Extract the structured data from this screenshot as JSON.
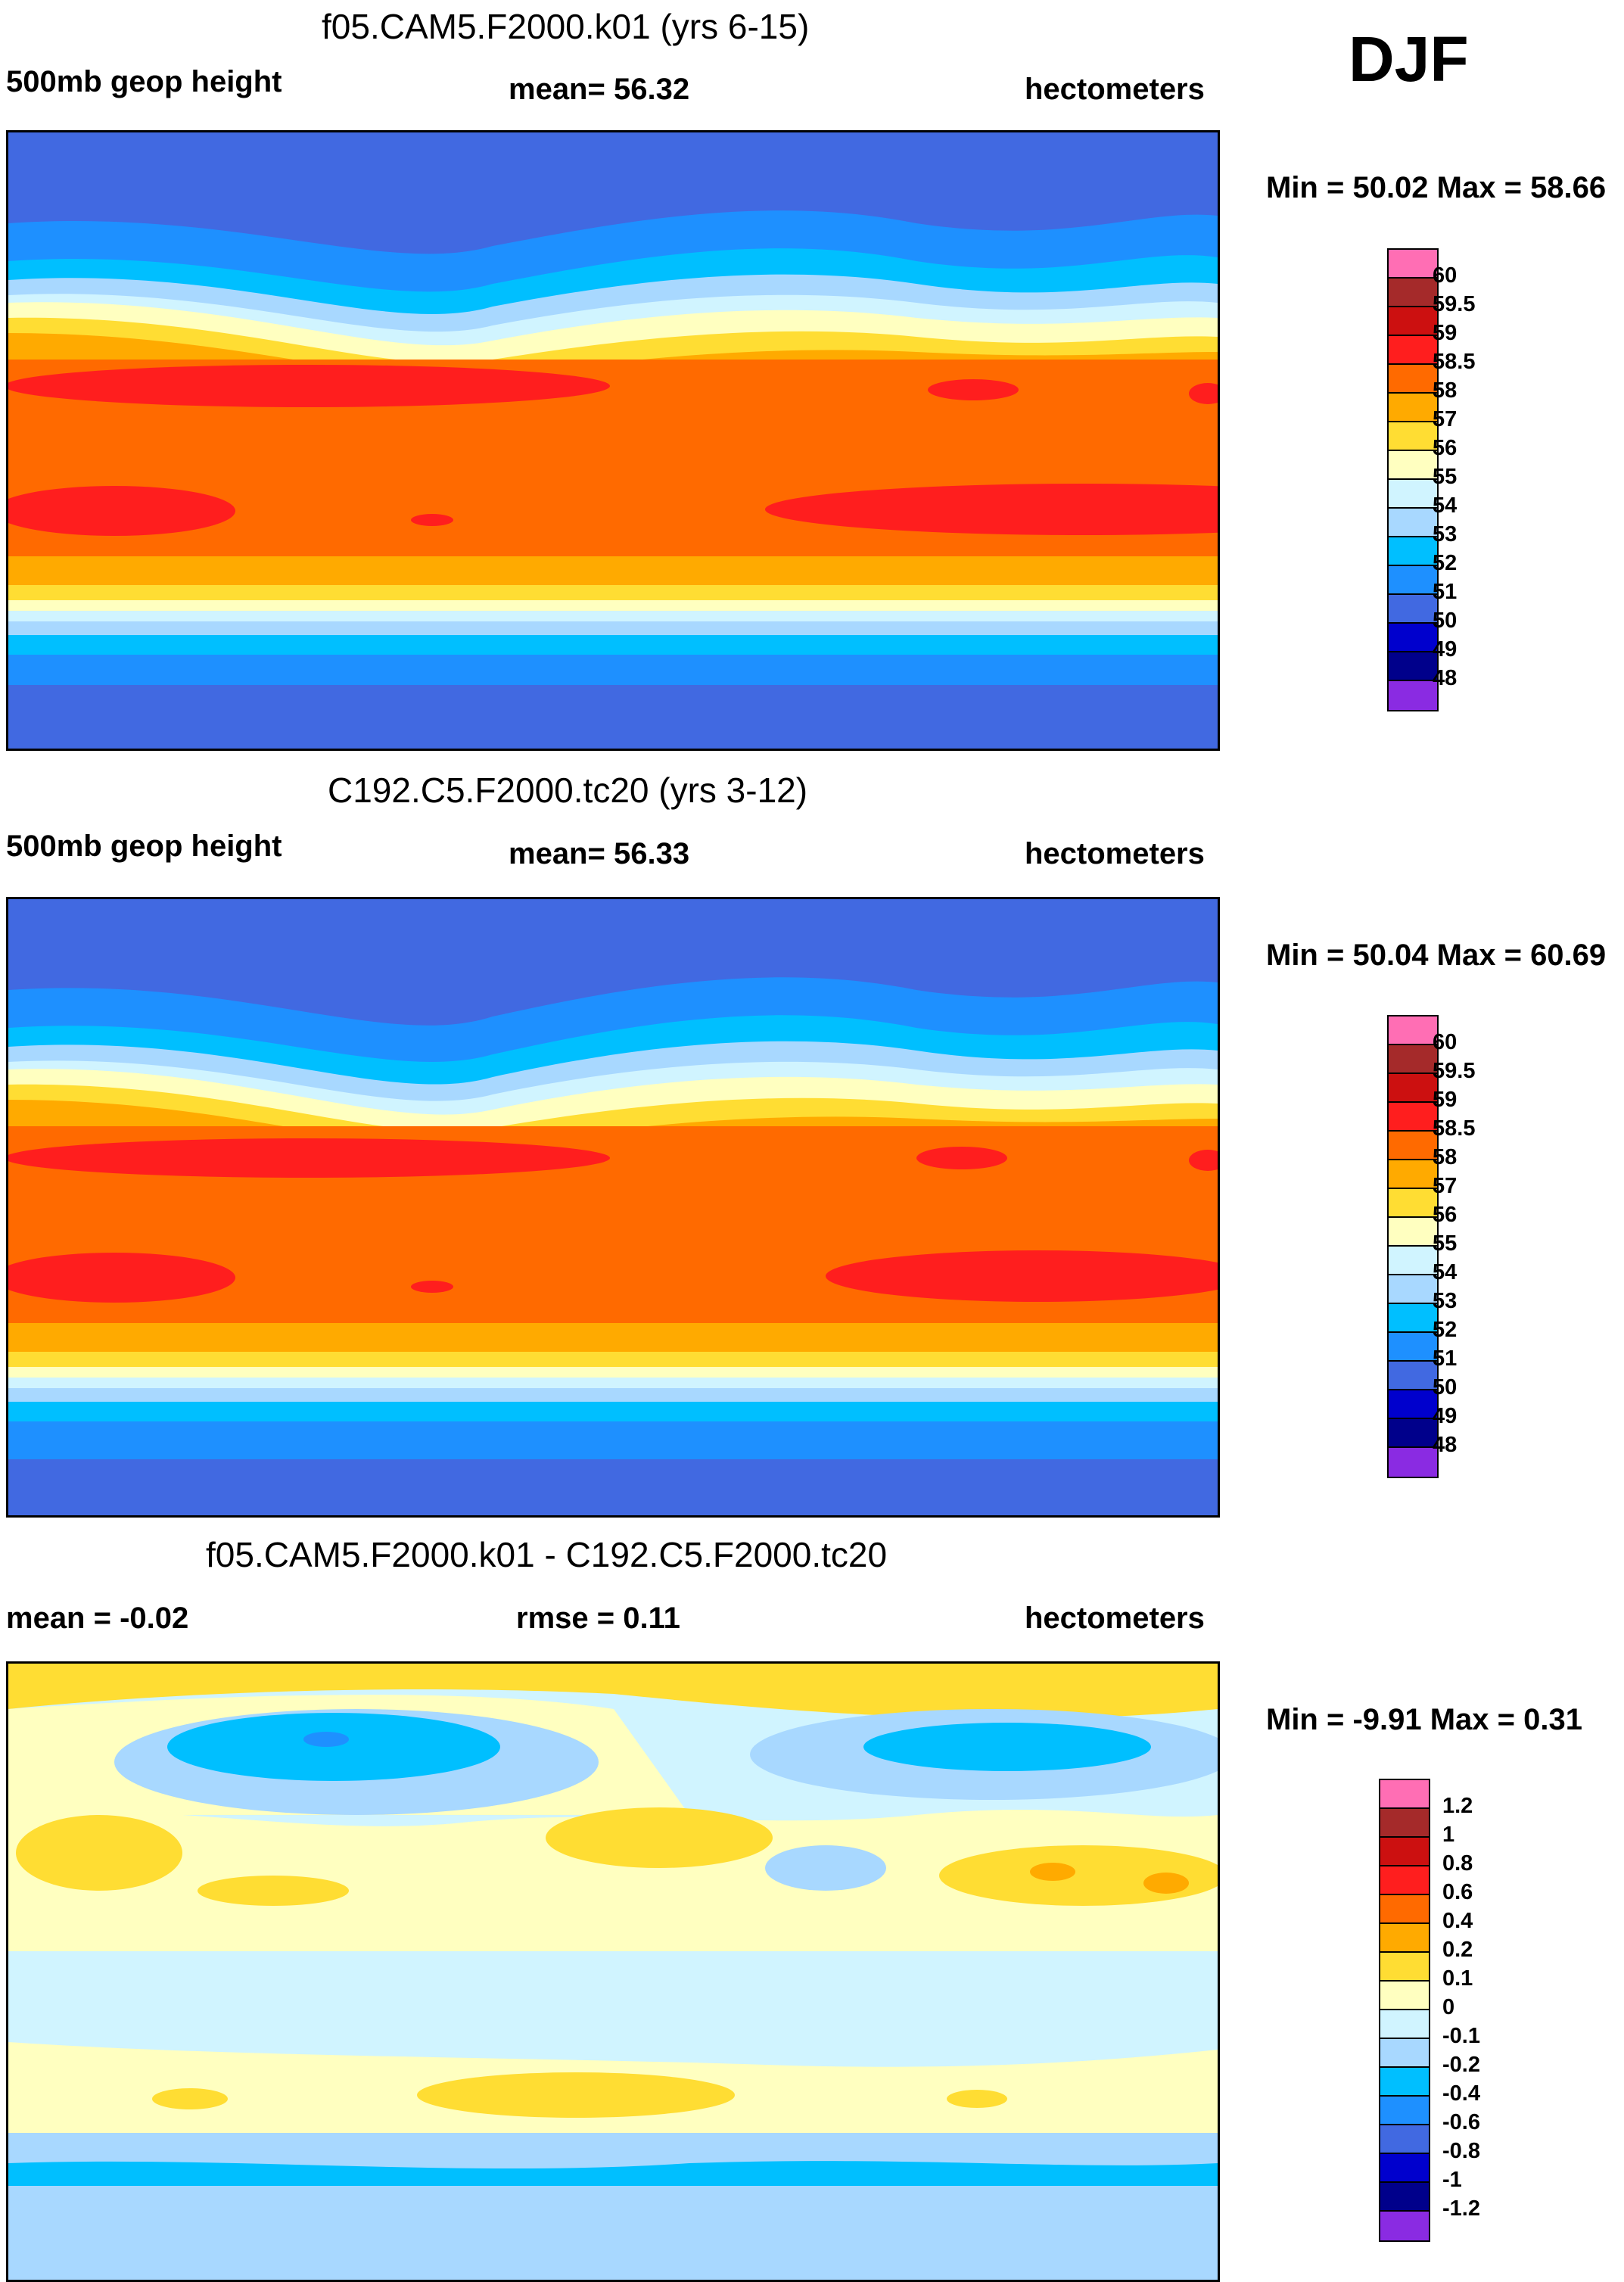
{
  "season": "DJF",
  "panels": [
    {
      "title": "f05.CAM5.F2000.k01 (yrs 6-15)",
      "left_label": "500mb geop height",
      "center_label": "mean=  56.32",
      "units": "hectometers",
      "minmax": "Min =  50.02 Max =  58.66",
      "field": "absolute",
      "colorbar_labels": [
        "60",
        "59.5",
        "59",
        "58.5",
        "58",
        "57",
        "56",
        "55",
        "54",
        "53",
        "52",
        "51",
        "50",
        "49",
        "48"
      ]
    },
    {
      "title": "C192.C5.F2000.tc20 (yrs 3-12)",
      "left_label": "500mb geop height",
      "center_label": "mean=  56.33",
      "units": "hectometers",
      "minmax": "Min =  50.04 Max =  60.69",
      "field": "absolute",
      "colorbar_labels": [
        "60",
        "59.5",
        "59",
        "58.5",
        "58",
        "57",
        "56",
        "55",
        "54",
        "53",
        "52",
        "51",
        "50",
        "49",
        "48"
      ]
    },
    {
      "title": "f05.CAM5.F2000.k01 - C192.C5.F2000.tc20",
      "left_label": "mean =  -0.02",
      "center_label": "rmse =   0.11",
      "units": "hectometers",
      "minmax": "Min =  -9.91 Max =   0.31",
      "field": "difference",
      "colorbar_labels": [
        "1.2",
        "1",
        "0.8",
        "0.6",
        "0.4",
        "0.2",
        "0.1",
        "0",
        "-0.1",
        "-0.2",
        "-0.4",
        "-0.6",
        "-0.8",
        "-1",
        "-1.2"
      ]
    }
  ],
  "colors": {
    "abs_palette": [
      "#ff6eb4",
      "#a52a2a",
      "#cc1010",
      "#ff1e1e",
      "#ff6a00",
      "#ffaa00",
      "#ffdd33",
      "#ffffc0",
      "#d0f4ff",
      "#a8d8ff",
      "#00bfff",
      "#1e90ff",
      "#4169e1",
      "#0000cd",
      "#00008b",
      "#8a2be2"
    ],
    "diff_palette": [
      "#ff6eb4",
      "#a52a2a",
      "#cc1010",
      "#ff1e1e",
      "#ff6a00",
      "#ffaa00",
      "#ffdd33",
      "#ffffc0",
      "#d0f4ff",
      "#a8d8ff",
      "#00bfff",
      "#1e90ff",
      "#4169e1",
      "#0000cd",
      "#00008b",
      "#8a2be2"
    ]
  }
}
